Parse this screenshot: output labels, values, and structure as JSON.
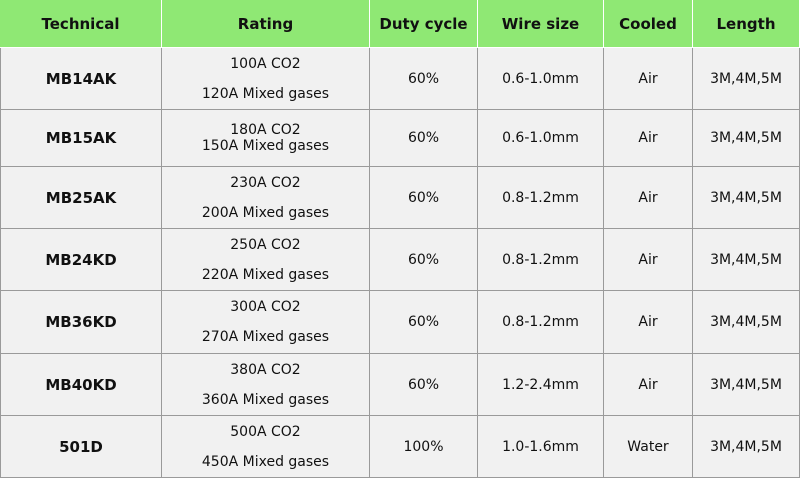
{
  "table": {
    "header": [
      "Technical",
      "Rating",
      "Duty cycle",
      "Wire size",
      "Cooled",
      "Length"
    ],
    "rows": [
      [
        "MB14AK",
        [
          "100A CO2",
          "120A Mixed gases"
        ],
        "60%",
        "0.6-1.0mm",
        "Air",
        "3M,4M,5M"
      ],
      [
        "MB15AK",
        [
          "180A CO2",
          "150A Mixed gases"
        ],
        "60%",
        "0.6-1.0mm",
        "Air",
        "3M,4M,5M"
      ],
      [
        "MB25AK",
        [
          "230A CO2",
          "200A Mixed gases"
        ],
        "60%",
        "0.8-1.2mm",
        "Air",
        "3M,4M,5M"
      ],
      [
        "MB24KD",
        [
          "250A CO2",
          "220A Mixed gases"
        ],
        "60%",
        "0.8-1.2mm",
        "Air",
        "3M,4M,5M"
      ],
      [
        "MB36KD",
        [
          "300A CO2",
          "270A Mixed gases"
        ],
        "60%",
        "0.8-1.2mm",
        "Air",
        "3M,4M,5M"
      ],
      [
        "MB40KD",
        [
          "380A CO2",
          "360A Mixed gases"
        ],
        "60%",
        "1.2-2.4mm",
        "Air",
        "3M,4M,5M"
      ],
      [
        "501D",
        [
          "500A CO2",
          "450A Mixed gases"
        ],
        "100%",
        "1.0-1.6mm",
        "Water",
        "3M,4M,5M"
      ]
    ]
  }
}
